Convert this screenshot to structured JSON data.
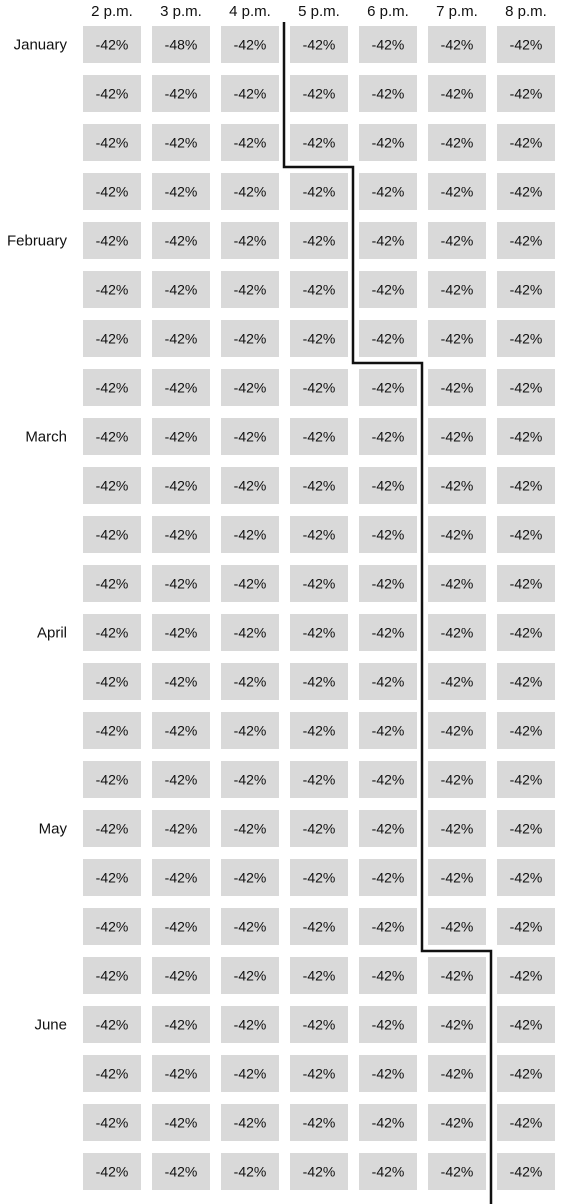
{
  "chart_data": {
    "type": "heatmap",
    "title": "",
    "columns": [
      "2 p.m.",
      "3 p.m.",
      "4 p.m.",
      "5 p.m.",
      "6 p.m.",
      "7 p.m.",
      "8 p.m."
    ],
    "months": [
      "January",
      "February",
      "March",
      "April",
      "May",
      "June"
    ],
    "rows_per_month": 4,
    "values": [
      [
        "-42%",
        "-48%",
        "-42%",
        "-42%",
        "-42%",
        "-42%",
        "-42%"
      ],
      [
        "-42%",
        "-42%",
        "-42%",
        "-42%",
        "-42%",
        "-42%",
        "-42%"
      ],
      [
        "-42%",
        "-42%",
        "-42%",
        "-42%",
        "-42%",
        "-42%",
        "-42%"
      ],
      [
        "-42%",
        "-42%",
        "-42%",
        "-42%",
        "-42%",
        "-42%",
        "-42%"
      ],
      [
        "-42%",
        "-42%",
        "-42%",
        "-42%",
        "-42%",
        "-42%",
        "-42%"
      ],
      [
        "-42%",
        "-42%",
        "-42%",
        "-42%",
        "-42%",
        "-42%",
        "-42%"
      ],
      [
        "-42%",
        "-42%",
        "-42%",
        "-42%",
        "-42%",
        "-42%",
        "-42%"
      ],
      [
        "-42%",
        "-42%",
        "-42%",
        "-42%",
        "-42%",
        "-42%",
        "-42%"
      ],
      [
        "-42%",
        "-42%",
        "-42%",
        "-42%",
        "-42%",
        "-42%",
        "-42%"
      ],
      [
        "-42%",
        "-42%",
        "-42%",
        "-42%",
        "-42%",
        "-42%",
        "-42%"
      ],
      [
        "-42%",
        "-42%",
        "-42%",
        "-42%",
        "-42%",
        "-42%",
        "-42%"
      ],
      [
        "-42%",
        "-42%",
        "-42%",
        "-42%",
        "-42%",
        "-42%",
        "-42%"
      ],
      [
        "-42%",
        "-42%",
        "-42%",
        "-42%",
        "-42%",
        "-42%",
        "-42%"
      ],
      [
        "-42%",
        "-42%",
        "-42%",
        "-42%",
        "-42%",
        "-42%",
        "-42%"
      ],
      [
        "-42%",
        "-42%",
        "-42%",
        "-42%",
        "-42%",
        "-42%",
        "-42%"
      ],
      [
        "-42%",
        "-42%",
        "-42%",
        "-42%",
        "-42%",
        "-42%",
        "-42%"
      ],
      [
        "-42%",
        "-42%",
        "-42%",
        "-42%",
        "-42%",
        "-42%",
        "-42%"
      ],
      [
        "-42%",
        "-42%",
        "-42%",
        "-42%",
        "-42%",
        "-42%",
        "-42%"
      ],
      [
        "-42%",
        "-42%",
        "-42%",
        "-42%",
        "-42%",
        "-42%",
        "-42%"
      ],
      [
        "-42%",
        "-42%",
        "-42%",
        "-42%",
        "-42%",
        "-42%",
        "-42%"
      ],
      [
        "-42%",
        "-42%",
        "-42%",
        "-42%",
        "-42%",
        "-42%",
        "-42%"
      ],
      [
        "-42%",
        "-42%",
        "-42%",
        "-42%",
        "-42%",
        "-42%",
        "-42%"
      ],
      [
        "-42%",
        "-42%",
        "-42%",
        "-42%",
        "-42%",
        "-42%",
        "-42%"
      ],
      [
        "-42%",
        "-42%",
        "-42%",
        "-42%",
        "-42%",
        "-42%",
        "-42%"
      ]
    ],
    "boundary_line": [
      {
        "from_row": 0,
        "to_row": 3,
        "after_column": "4 p.m."
      },
      {
        "from_row": 3,
        "to_row": 7,
        "after_column": "5 p.m."
      },
      {
        "from_row": 7,
        "to_row": 19,
        "after_column": "6 p.m."
      },
      {
        "from_row": 19,
        "to_row": 24,
        "after_column": "7 p.m."
      }
    ],
    "colors": {
      "cell": "#d9d9d9",
      "text": "#111111",
      "boundary_line": "#111111",
      "background": "#ffffff"
    },
    "grid": false,
    "legend": "none"
  }
}
